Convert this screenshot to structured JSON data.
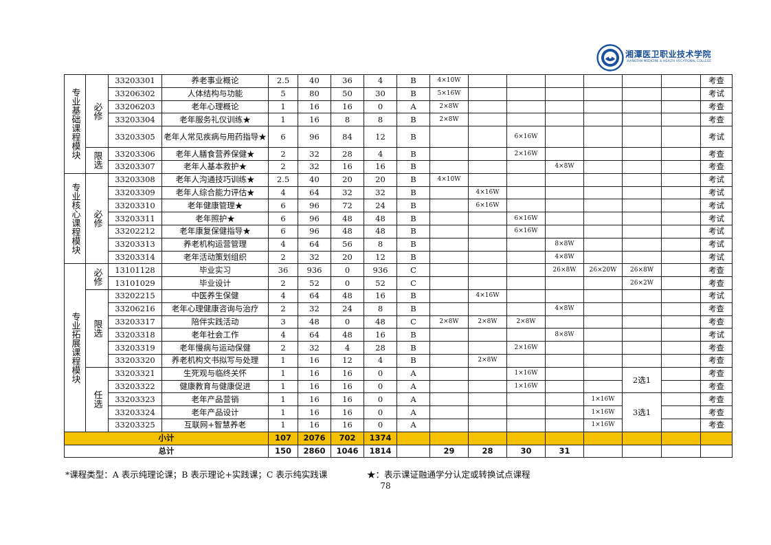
{
  "header": {
    "school_name": "湘潭医卫职业技术学院",
    "school_name_en": "XIANGTAN MEDICINE & HEALTH VOCATIONAL COLLEGE"
  },
  "modules": [
    {
      "name": "专业基础课程模块",
      "subgroups": [
        {
          "type": "必修",
          "rows": [
            {
              "code": "33203301",
              "name": "养老事业概论",
              "credit": "2.5",
              "hours": "40",
              "theory": "36",
              "practice": "4",
              "ctype": "B",
              "s1": "4×10W",
              "s2": "",
              "s3": "",
              "s4": "",
              "s5": "",
              "s6": "",
              "s7": "",
              "assess": "考查"
            },
            {
              "code": "33206302",
              "name": "人体结构与功能",
              "credit": "5",
              "hours": "80",
              "theory": "50",
              "practice": "30",
              "ctype": "B",
              "s1": "5×16W",
              "s2": "",
              "s3": "",
              "s4": "",
              "s5": "",
              "s6": "",
              "s7": "",
              "assess": "考试"
            },
            {
              "code": "33206203",
              "name": "老年心理概论",
              "credit": "1",
              "hours": "16",
              "theory": "16",
              "practice": "0",
              "ctype": "A",
              "s1": "2×8W",
              "s2": "",
              "s3": "",
              "s4": "",
              "s5": "",
              "s6": "",
              "s7": "",
              "assess": "考查"
            },
            {
              "code": "33203304",
              "name": "老年服务礼仪训练★",
              "credit": "1",
              "hours": "16",
              "theory": "8",
              "practice": "8",
              "ctype": "B",
              "s1": "2×8W",
              "s2": "",
              "s3": "",
              "s4": "",
              "s5": "",
              "s6": "",
              "s7": "",
              "assess": "考查"
            },
            {
              "code": "33203305",
              "name": "老年人常见疾病与用药指导★",
              "credit": "6",
              "hours": "96",
              "theory": "84",
              "practice": "12",
              "ctype": "B",
              "s1": "",
              "s2": "",
              "s3": "6×16W",
              "s4": "",
              "s5": "",
              "s6": "",
              "s7": "",
              "assess": "考试"
            }
          ]
        },
        {
          "type": "限选",
          "rows": [
            {
              "code": "33203306",
              "name": "老年人膳食营养保健★",
              "credit": "2",
              "hours": "32",
              "theory": "28",
              "practice": "4",
              "ctype": "B",
              "s1": "",
              "s2": "",
              "s3": "2×16W",
              "s4": "",
              "s5": "",
              "s6": "",
              "s7": "",
              "assess": "考查"
            },
            {
              "code": "33203307",
              "name": "老年人基本救护★",
              "credit": "2",
              "hours": "32",
              "theory": "16",
              "practice": "16",
              "ctype": "B",
              "s1": "",
              "s2": "",
              "s3": "",
              "s4": "4×8W",
              "s5": "",
              "s6": "",
              "s7": "",
              "assess": "考查"
            }
          ]
        }
      ]
    },
    {
      "name": "专业核心课程模块",
      "subgroups": [
        {
          "type": "必修",
          "rows": [
            {
              "code": "33203308",
              "name": "老年人沟通技巧训练★",
              "credit": "2.5",
              "hours": "40",
              "theory": "20",
              "practice": "20",
              "ctype": "B",
              "s1": "4×10W",
              "s2": "",
              "s3": "",
              "s4": "",
              "s5": "",
              "s6": "",
              "s7": "",
              "assess": "考试"
            },
            {
              "code": "33203309",
              "name": "老年人综合能力评估★",
              "credit": "4",
              "hours": "64",
              "theory": "32",
              "practice": "32",
              "ctype": "B",
              "s1": "",
              "s2": "4×16W",
              "s3": "",
              "s4": "",
              "s5": "",
              "s6": "",
              "s7": "",
              "assess": "考试"
            },
            {
              "code": "33203310",
              "name": "老年健康管理★",
              "credit": "6",
              "hours": "96",
              "theory": "72",
              "practice": "24",
              "ctype": "B",
              "s1": "",
              "s2": "6×16W",
              "s3": "",
              "s4": "",
              "s5": "",
              "s6": "",
              "s7": "",
              "assess": "考试"
            },
            {
              "code": "33203311",
              "name": "老年照护★",
              "credit": "6",
              "hours": "96",
              "theory": "48",
              "practice": "48",
              "ctype": "B",
              "s1": "",
              "s2": "",
              "s3": "6×16W",
              "s4": "",
              "s5": "",
              "s6": "",
              "s7": "",
              "assess": "考试"
            },
            {
              "code": "33202212",
              "name": "老年康复保健指导★",
              "credit": "6",
              "hours": "96",
              "theory": "48",
              "practice": "48",
              "ctype": "B",
              "s1": "",
              "s2": "",
              "s3": "6×16W",
              "s4": "",
              "s5": "",
              "s6": "",
              "s7": "",
              "assess": "考试"
            },
            {
              "code": "33203313",
              "name": "养老机构运营管理",
              "credit": "4",
              "hours": "64",
              "theory": "56",
              "practice": "8",
              "ctype": "B",
              "s1": "",
              "s2": "",
              "s3": "",
              "s4": "8×8W",
              "s5": "",
              "s6": "",
              "s7": "",
              "assess": "考试"
            },
            {
              "code": "33203314",
              "name": "老年活动策划组织",
              "credit": "2",
              "hours": "32",
              "theory": "20",
              "practice": "12",
              "ctype": "B",
              "s1": "",
              "s2": "",
              "s3": "",
              "s4": "4×8W",
              "s5": "",
              "s6": "",
              "s7": "",
              "assess": "考试"
            }
          ]
        }
      ]
    },
    {
      "name": "专业拓展课程模块",
      "subgroups": [
        {
          "type": "必修",
          "rows": [
            {
              "code": "13101128",
              "name": "毕业实习",
              "credit": "36",
              "hours": "936",
              "theory": "0",
              "practice": "936",
              "ctype": "C",
              "s1": "",
              "s2": "",
              "s3": "",
              "s4": "26×8W",
              "s5": "26×20W",
              "s6": "26×8W",
              "s7": "",
              "assess": "考查"
            },
            {
              "code": "13101029",
              "name": "毕业设计",
              "credit": "2",
              "hours": "52",
              "theory": "0",
              "practice": "52",
              "ctype": "C",
              "s1": "",
              "s2": "",
              "s3": "",
              "s4": "",
              "s5": "",
              "s6": "26×2W",
              "s7": "",
              "assess": "考查"
            }
          ]
        },
        {
          "type": "限选",
          "rows": [
            {
              "code": "33202215",
              "name": "中医养生保健",
              "credit": "4",
              "hours": "64",
              "theory": "48",
              "practice": "16",
              "ctype": "B",
              "s1": "",
              "s2": "4×16W",
              "s3": "",
              "s4": "",
              "s5": "",
              "s6": "",
              "s7": "",
              "assess": "考试"
            },
            {
              "code": "33206216",
              "name": "老年心理健康咨询与治疗",
              "credit": "2",
              "hours": "32",
              "theory": "24",
              "practice": "8",
              "ctype": "B",
              "s1": "",
              "s2": "",
              "s3": "",
              "s4": "4×8W",
              "s5": "",
              "s6": "",
              "s7": "",
              "assess": "考查"
            },
            {
              "code": "33203317",
              "name": "陪伴实践活动",
              "credit": "3",
              "hours": "48",
              "theory": "0",
              "practice": "48",
              "ctype": "C",
              "s1": "2×8W",
              "s2": "2×8W",
              "s3": "2×8W",
              "s4": "",
              "s5": "",
              "s6": "",
              "s7": "",
              "assess": "考查"
            },
            {
              "code": "33203318",
              "name": "老年社会工作",
              "credit": "4",
              "hours": "64",
              "theory": "48",
              "practice": "16",
              "ctype": "B",
              "s1": "",
              "s2": "",
              "s3": "",
              "s4": "8×8W",
              "s5": "",
              "s6": "",
              "s7": "",
              "assess": "考试"
            },
            {
              "code": "33203319",
              "name": "老年慢病与运动保健",
              "credit": "2",
              "hours": "32",
              "theory": "4",
              "practice": "28",
              "ctype": "B",
              "s1": "",
              "s2": "",
              "s3": "2×16W",
              "s4": "",
              "s5": "",
              "s6": "",
              "s7": "",
              "assess": "考查"
            },
            {
              "code": "33203320",
              "name": "养老机构文书拟写与处理",
              "credit": "1",
              "hours": "16",
              "theory": "12",
              "practice": "4",
              "ctype": "B",
              "s1": "",
              "s2": "2×8W",
              "s3": "",
              "s4": "",
              "s5": "",
              "s6": "",
              "s7": "",
              "assess": "考查"
            }
          ]
        },
        {
          "type": "任选",
          "rows": [
            {
              "code": "33203321",
              "name": "生死观与临终关怀",
              "credit": "1",
              "hours": "16",
              "theory": "16",
              "practice": "0",
              "ctype": "A",
              "s1": "",
              "s2": "",
              "s3": "1×16W",
              "s4": "",
              "s5": "",
              "s6": "",
              "s7": "",
              "assess": "考查"
            },
            {
              "code": "33203322",
              "name": "健康教育与健康促进",
              "credit": "1",
              "hours": "16",
              "theory": "16",
              "practice": "0",
              "ctype": "A",
              "s1": "",
              "s2": "",
              "s3": "1×16W",
              "s4": "",
              "s5": "",
              "s6": "",
              "s7": "",
              "assess": "考查"
            },
            {
              "code": "33203323",
              "name": "老年产品营销",
              "credit": "1",
              "hours": "16",
              "theory": "16",
              "practice": "0",
              "ctype": "A",
              "s1": "",
              "s2": "",
              "s3": "",
              "s4": "",
              "s5": "1×16W",
              "s6": "",
              "s7": "",
              "assess": "考查"
            },
            {
              "code": "33203324",
              "name": "老年产品设计",
              "credit": "1",
              "hours": "16",
              "theory": "16",
              "practice": "0",
              "ctype": "A",
              "s1": "",
              "s2": "",
              "s3": "",
              "s4": "",
              "s5": "1×16W",
              "s6": "",
              "s7": "",
              "assess": "考查"
            },
            {
              "code": "33203325",
              "name": "互联网+智慧养老",
              "credit": "1",
              "hours": "16",
              "theory": "16",
              "practice": "0",
              "ctype": "A",
              "s1": "",
              "s2": "",
              "s3": "",
              "s4": "",
              "s5": "1×16W",
              "s6": "",
              "s7": "",
              "assess": "考查"
            }
          ]
        }
      ]
    }
  ],
  "elective_notes": {
    "group1": "2选1",
    "group2": "3选1"
  },
  "subtotal": {
    "label": "小计",
    "credit": "107",
    "hours": "2076",
    "theory": "702",
    "practice": "1374"
  },
  "total": {
    "label": "总计",
    "credit": "150",
    "hours": "2860",
    "theory": "1046",
    "practice": "1814",
    "s1": "29",
    "s2": "28",
    "s3": "30",
    "s4": "31"
  },
  "legend": {
    "course_types": "*课程类型：A 表示纯理论课；B 表示理论+实践课；C 表示纯实践课",
    "star_note": "★：表示课证融通学分认定或转换试点课程"
  },
  "page_number": "78"
}
